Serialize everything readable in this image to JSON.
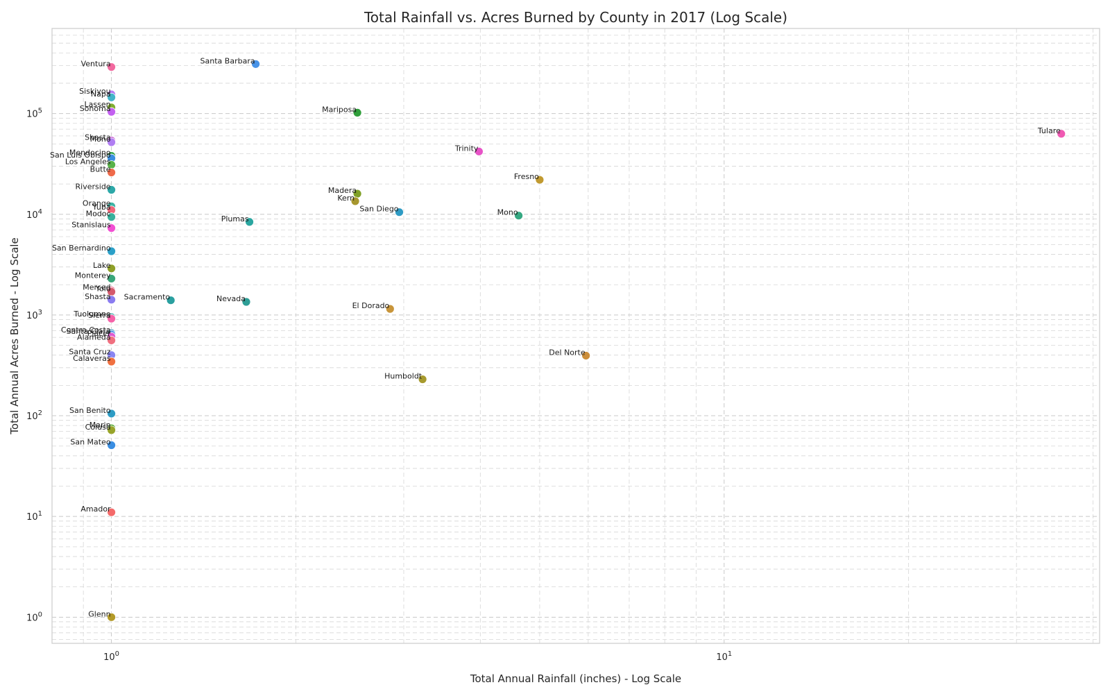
{
  "chart_data": {
    "type": "scatter",
    "title": "Total Rainfall vs. Acres Burned by County in 2017 (Log Scale)",
    "xlabel": "Total Annual Rainfall (inches) - Log Scale",
    "ylabel": "Total Annual Acres Burned - Log Scale",
    "x_scale": "log",
    "y_scale": "log",
    "xlim": [
      0.8,
      41
    ],
    "ylim": [
      0.55,
      700000
    ],
    "x_ticks": [
      {
        "value": 1,
        "base": "10",
        "exp": "0"
      },
      {
        "value": 10,
        "base": "10",
        "exp": "1"
      }
    ],
    "y_ticks": [
      {
        "value": 1,
        "base": "10",
        "exp": "0"
      },
      {
        "value": 10,
        "base": "10",
        "exp": "1"
      },
      {
        "value": 100,
        "base": "10",
        "exp": "2"
      },
      {
        "value": 1000,
        "base": "10",
        "exp": "3"
      },
      {
        "value": 10000,
        "base": "10",
        "exp": "4"
      },
      {
        "value": 100000,
        "base": "10",
        "exp": "5"
      }
    ],
    "grid": true,
    "points": [
      {
        "label": "Ventura",
        "x": 1.0,
        "y": 290000,
        "color": "#f2699f"
      },
      {
        "label": "Santa Barbara",
        "x": 1.72,
        "y": 310000,
        "color": "#4893e8"
      },
      {
        "label": "Siskiyou",
        "x": 1.0,
        "y": 155000,
        "color": "#b57cf4"
      },
      {
        "label": "Napa",
        "x": 1.0,
        "y": 145000,
        "color": "#43b4c9"
      },
      {
        "label": "Lassen",
        "x": 1.0,
        "y": 115000,
        "color": "#81ad31"
      },
      {
        "label": "Sonoma",
        "x": 1.0,
        "y": 104000,
        "color": "#c360f0"
      },
      {
        "label": "Mariposa",
        "x": 2.52,
        "y": 102000,
        "color": "#2f9e3a"
      },
      {
        "label": "Tulare",
        "x": 35.5,
        "y": 63000,
        "color": "#f05ab3"
      },
      {
        "label": "Shasta",
        "x": 1.0,
        "y": 54000,
        "color": "#cc6bd6"
      },
      {
        "label": "Mono",
        "x": 1.0,
        "y": 52000,
        "color": "#b07ef2"
      },
      {
        "label": "Trinity",
        "x": 3.98,
        "y": 42000,
        "color": "#e753c7"
      },
      {
        "label": "Mendocino",
        "x": 1.0,
        "y": 38000,
        "color": "#36a64a"
      },
      {
        "label": "San Luis Obispo",
        "x": 1.0,
        "y": 36000,
        "color": "#3a8fe0"
      },
      {
        "label": "Los Angeles",
        "x": 1.0,
        "y": 31000,
        "color": "#59b249"
      },
      {
        "label": "Butte",
        "x": 1.0,
        "y": 26000,
        "color": "#ef6a4a"
      },
      {
        "label": "Fresno",
        "x": 5.0,
        "y": 22000,
        "color": "#c19a30"
      },
      {
        "label": "Riverside",
        "x": 1.0,
        "y": 17500,
        "color": "#2da8a8"
      },
      {
        "label": "Madera",
        "x": 2.52,
        "y": 16000,
        "color": "#7fa026"
      },
      {
        "label": "Kern",
        "x": 2.5,
        "y": 13500,
        "color": "#a7972e"
      },
      {
        "label": "Orange",
        "x": 1.0,
        "y": 12000,
        "color": "#3fb5a6"
      },
      {
        "label": "Yuba",
        "x": 1.0,
        "y": 11000,
        "color": "#f1667a"
      },
      {
        "label": "San Diego",
        "x": 2.95,
        "y": 10500,
        "color": "#2e9bc4"
      },
      {
        "label": "Mono",
        "x": 4.62,
        "y": 9700,
        "color": "#35a882"
      },
      {
        "label": "Modoc",
        "x": 1.0,
        "y": 9400,
        "color": "#38b09c"
      },
      {
        "label": "Plumas",
        "x": 1.68,
        "y": 8400,
        "color": "#2aa6a0"
      },
      {
        "label": "Stanislaus",
        "x": 1.0,
        "y": 7300,
        "color": "#f24fd3"
      },
      {
        "label": "San Bernardino",
        "x": 1.0,
        "y": 4300,
        "color": "#2ba0c8"
      },
      {
        "label": "Lake",
        "x": 1.0,
        "y": 2900,
        "color": "#8e9f27"
      },
      {
        "label": "Monterey",
        "x": 1.0,
        "y": 2300,
        "color": "#39a67a"
      },
      {
        "label": "Merced",
        "x": 1.0,
        "y": 1750,
        "color": "#f06a90"
      },
      {
        "label": "Yolo",
        "x": 1.0,
        "y": 1700,
        "color": "#d45a6d"
      },
      {
        "label": "Shasta",
        "x": 1.0,
        "y": 1420,
        "color": "#8a7cf0"
      },
      {
        "label": "Sacramento",
        "x": 1.25,
        "y": 1400,
        "color": "#2aa0a0"
      },
      {
        "label": "Nevada",
        "x": 1.66,
        "y": 1350,
        "color": "#2e9e96"
      },
      {
        "label": "El Dorado",
        "x": 2.85,
        "y": 1150,
        "color": "#c8953a"
      },
      {
        "label": "Tuolumne",
        "x": 1.0,
        "y": 950,
        "color": "#2da7a2"
      },
      {
        "label": "Sierra",
        "x": 1.0,
        "y": 920,
        "color": "#f562a8"
      },
      {
        "label": "Contra Costa",
        "x": 1.0,
        "y": 660,
        "color": "#2e98bc"
      },
      {
        "label": "Santa Clara",
        "x": 1.0,
        "y": 640,
        "color": "#4a8fe6"
      },
      {
        "label": "Placer",
        "x": 1.0,
        "y": 610,
        "color": "#de5ad0"
      },
      {
        "label": "Alameda",
        "x": 1.0,
        "y": 560,
        "color": "#f07080"
      },
      {
        "label": "Santa Cruz",
        "x": 1.0,
        "y": 400,
        "color": "#8a86f2"
      },
      {
        "label": "Del Norte",
        "x": 5.95,
        "y": 395,
        "color": "#cc8e3a"
      },
      {
        "label": "Calaveras",
        "x": 1.0,
        "y": 345,
        "color": "#f07040"
      },
      {
        "label": "Humboldt",
        "x": 3.22,
        "y": 230,
        "color": "#a79a2e"
      },
      {
        "label": "San Benito",
        "x": 1.0,
        "y": 105,
        "color": "#2e9cc4"
      },
      {
        "label": "Marin",
        "x": 1.0,
        "y": 75,
        "color": "#56a832"
      },
      {
        "label": "Colusa",
        "x": 1.0,
        "y": 72,
        "color": "#98a42a"
      },
      {
        "label": "San Mateo",
        "x": 1.0,
        "y": 51,
        "color": "#3a8ee2"
      },
      {
        "label": "Amador",
        "x": 1.0,
        "y": 11,
        "color": "#f46a6a"
      },
      {
        "label": "Glenn",
        "x": 1.0,
        "y": 1.0,
        "color": "#b39a28"
      }
    ]
  }
}
